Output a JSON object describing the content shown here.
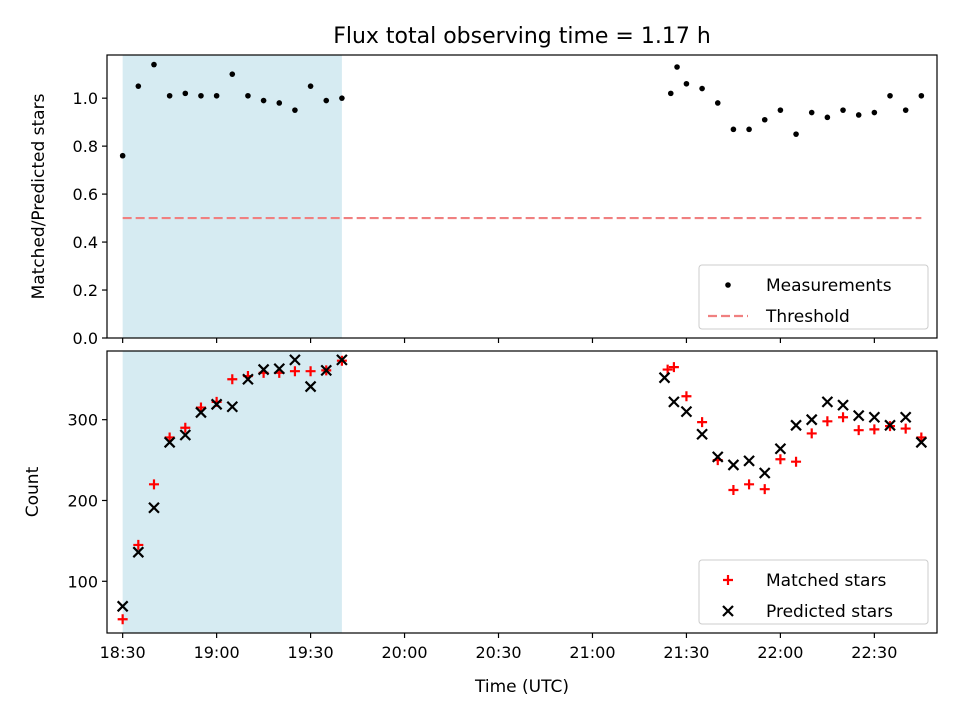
{
  "title": "Flux total observing time = 1.17 h",
  "xlabel": "Time (UTC)",
  "x_ticks": [
    "18:30",
    "19:00",
    "19:30",
    "20:00",
    "20:30",
    "21:00",
    "21:30",
    "22:00",
    "22:30"
  ],
  "colors": {
    "highlight": "#add8e6",
    "threshold": "#f08080",
    "matched": "#ff0000",
    "predicted": "#000000",
    "measurements": "#000000"
  },
  "chart_data": [
    {
      "type": "scatter",
      "ylabel": "Matched/Predicted stars",
      "xlim": [
        "18:25",
        "22:50"
      ],
      "ylim": [
        0,
        1.18
      ],
      "y_ticks": [
        "0.0",
        "0.2",
        "0.4",
        "0.6",
        "0.8",
        "1.0"
      ],
      "highlight_span": [
        "18:30",
        "19:40"
      ],
      "legend": {
        "position": "lower right",
        "entries": [
          "Measurements",
          "Threshold"
        ]
      },
      "threshold": {
        "name": "Threshold",
        "value": 0.5,
        "x_range": [
          "18:30",
          "22:45"
        ]
      },
      "series": [
        {
          "name": "Measurements",
          "points": [
            [
              "18:30",
              0.76
            ],
            [
              "18:35",
              1.05
            ],
            [
              "18:40",
              1.14
            ],
            [
              "18:45",
              1.01
            ],
            [
              "18:50",
              1.02
            ],
            [
              "18:55",
              1.01
            ],
            [
              "19:00",
              1.01
            ],
            [
              "19:05",
              1.1
            ],
            [
              "19:10",
              1.01
            ],
            [
              "19:15",
              0.99
            ],
            [
              "19:20",
              0.98
            ],
            [
              "19:25",
              0.95
            ],
            [
              "19:30",
              1.05
            ],
            [
              "19:35",
              0.99
            ],
            [
              "19:40",
              1.0
            ],
            [
              "21:25",
              1.02
            ],
            [
              "21:27",
              1.13
            ],
            [
              "21:30",
              1.06
            ],
            [
              "21:35",
              1.04
            ],
            [
              "21:40",
              0.98
            ],
            [
              "21:45",
              0.87
            ],
            [
              "21:50",
              0.87
            ],
            [
              "21:55",
              0.91
            ],
            [
              "22:00",
              0.95
            ],
            [
              "22:05",
              0.85
            ],
            [
              "22:10",
              0.94
            ],
            [
              "22:15",
              0.92
            ],
            [
              "22:20",
              0.95
            ],
            [
              "22:25",
              0.93
            ],
            [
              "22:30",
              0.94
            ],
            [
              "22:35",
              1.01
            ],
            [
              "22:40",
              0.95
            ],
            [
              "22:45",
              1.01
            ]
          ]
        }
      ]
    },
    {
      "type": "scatter",
      "ylabel": "Count",
      "xlim": [
        "18:25",
        "22:50"
      ],
      "ylim": [
        36,
        385
      ],
      "y_ticks": [
        "100",
        "200",
        "300"
      ],
      "highlight_span": [
        "18:30",
        "19:40"
      ],
      "legend": {
        "position": "lower right",
        "entries": [
          "Matched stars",
          "Predicted stars"
        ]
      },
      "series": [
        {
          "name": "Matched stars",
          "points": [
            [
              "18:30",
              53
            ],
            [
              "18:35",
              145
            ],
            [
              "18:40",
              220
            ],
            [
              "18:45",
              278
            ],
            [
              "18:50",
              290
            ],
            [
              "18:55",
              315
            ],
            [
              "19:00",
              322
            ],
            [
              "19:05",
              350
            ],
            [
              "19:10",
              354
            ],
            [
              "19:15",
              358
            ],
            [
              "19:20",
              358
            ],
            [
              "19:25",
              360
            ],
            [
              "19:30",
              360
            ],
            [
              "19:35",
              361
            ],
            [
              "19:40",
              373
            ],
            [
              "21:24",
              362
            ],
            [
              "21:26",
              365
            ],
            [
              "21:30",
              329
            ],
            [
              "21:35",
              297
            ],
            [
              "21:40",
              250
            ],
            [
              "21:45",
              213
            ],
            [
              "21:50",
              220
            ],
            [
              "21:55",
              214
            ],
            [
              "22:00",
              251
            ],
            [
              "22:05",
              248
            ],
            [
              "22:10",
              283
            ],
            [
              "22:15",
              298
            ],
            [
              "22:20",
              303
            ],
            [
              "22:25",
              287
            ],
            [
              "22:30",
              288
            ],
            [
              "22:35",
              292
            ],
            [
              "22:40",
              289
            ],
            [
              "22:45",
              278
            ]
          ]
        },
        {
          "name": "Predicted stars",
          "points": [
            [
              "18:30",
              69
            ],
            [
              "18:35",
              136
            ],
            [
              "18:40",
              191
            ],
            [
              "18:45",
              272
            ],
            [
              "18:50",
              281
            ],
            [
              "18:55",
              309
            ],
            [
              "19:00",
              319
            ],
            [
              "19:05",
              316
            ],
            [
              "19:10",
              350
            ],
            [
              "19:15",
              362
            ],
            [
              "19:20",
              363
            ],
            [
              "19:25",
              374
            ],
            [
              "19:30",
              341
            ],
            [
              "19:35",
              361
            ],
            [
              "19:40",
              374
            ],
            [
              "21:23",
              352
            ],
            [
              "21:26",
              322
            ],
            [
              "21:30",
              310
            ],
            [
              "21:35",
              282
            ],
            [
              "21:40",
              254
            ],
            [
              "21:45",
              244
            ],
            [
              "21:50",
              249
            ],
            [
              "21:55",
              234
            ],
            [
              "22:00",
              264
            ],
            [
              "22:05",
              293
            ],
            [
              "22:10",
              300
            ],
            [
              "22:15",
              322
            ],
            [
              "22:20",
              318
            ],
            [
              "22:25",
              305
            ],
            [
              "22:30",
              303
            ],
            [
              "22:35",
              293
            ],
            [
              "22:40",
              303
            ],
            [
              "22:45",
              272
            ]
          ]
        }
      ]
    }
  ]
}
